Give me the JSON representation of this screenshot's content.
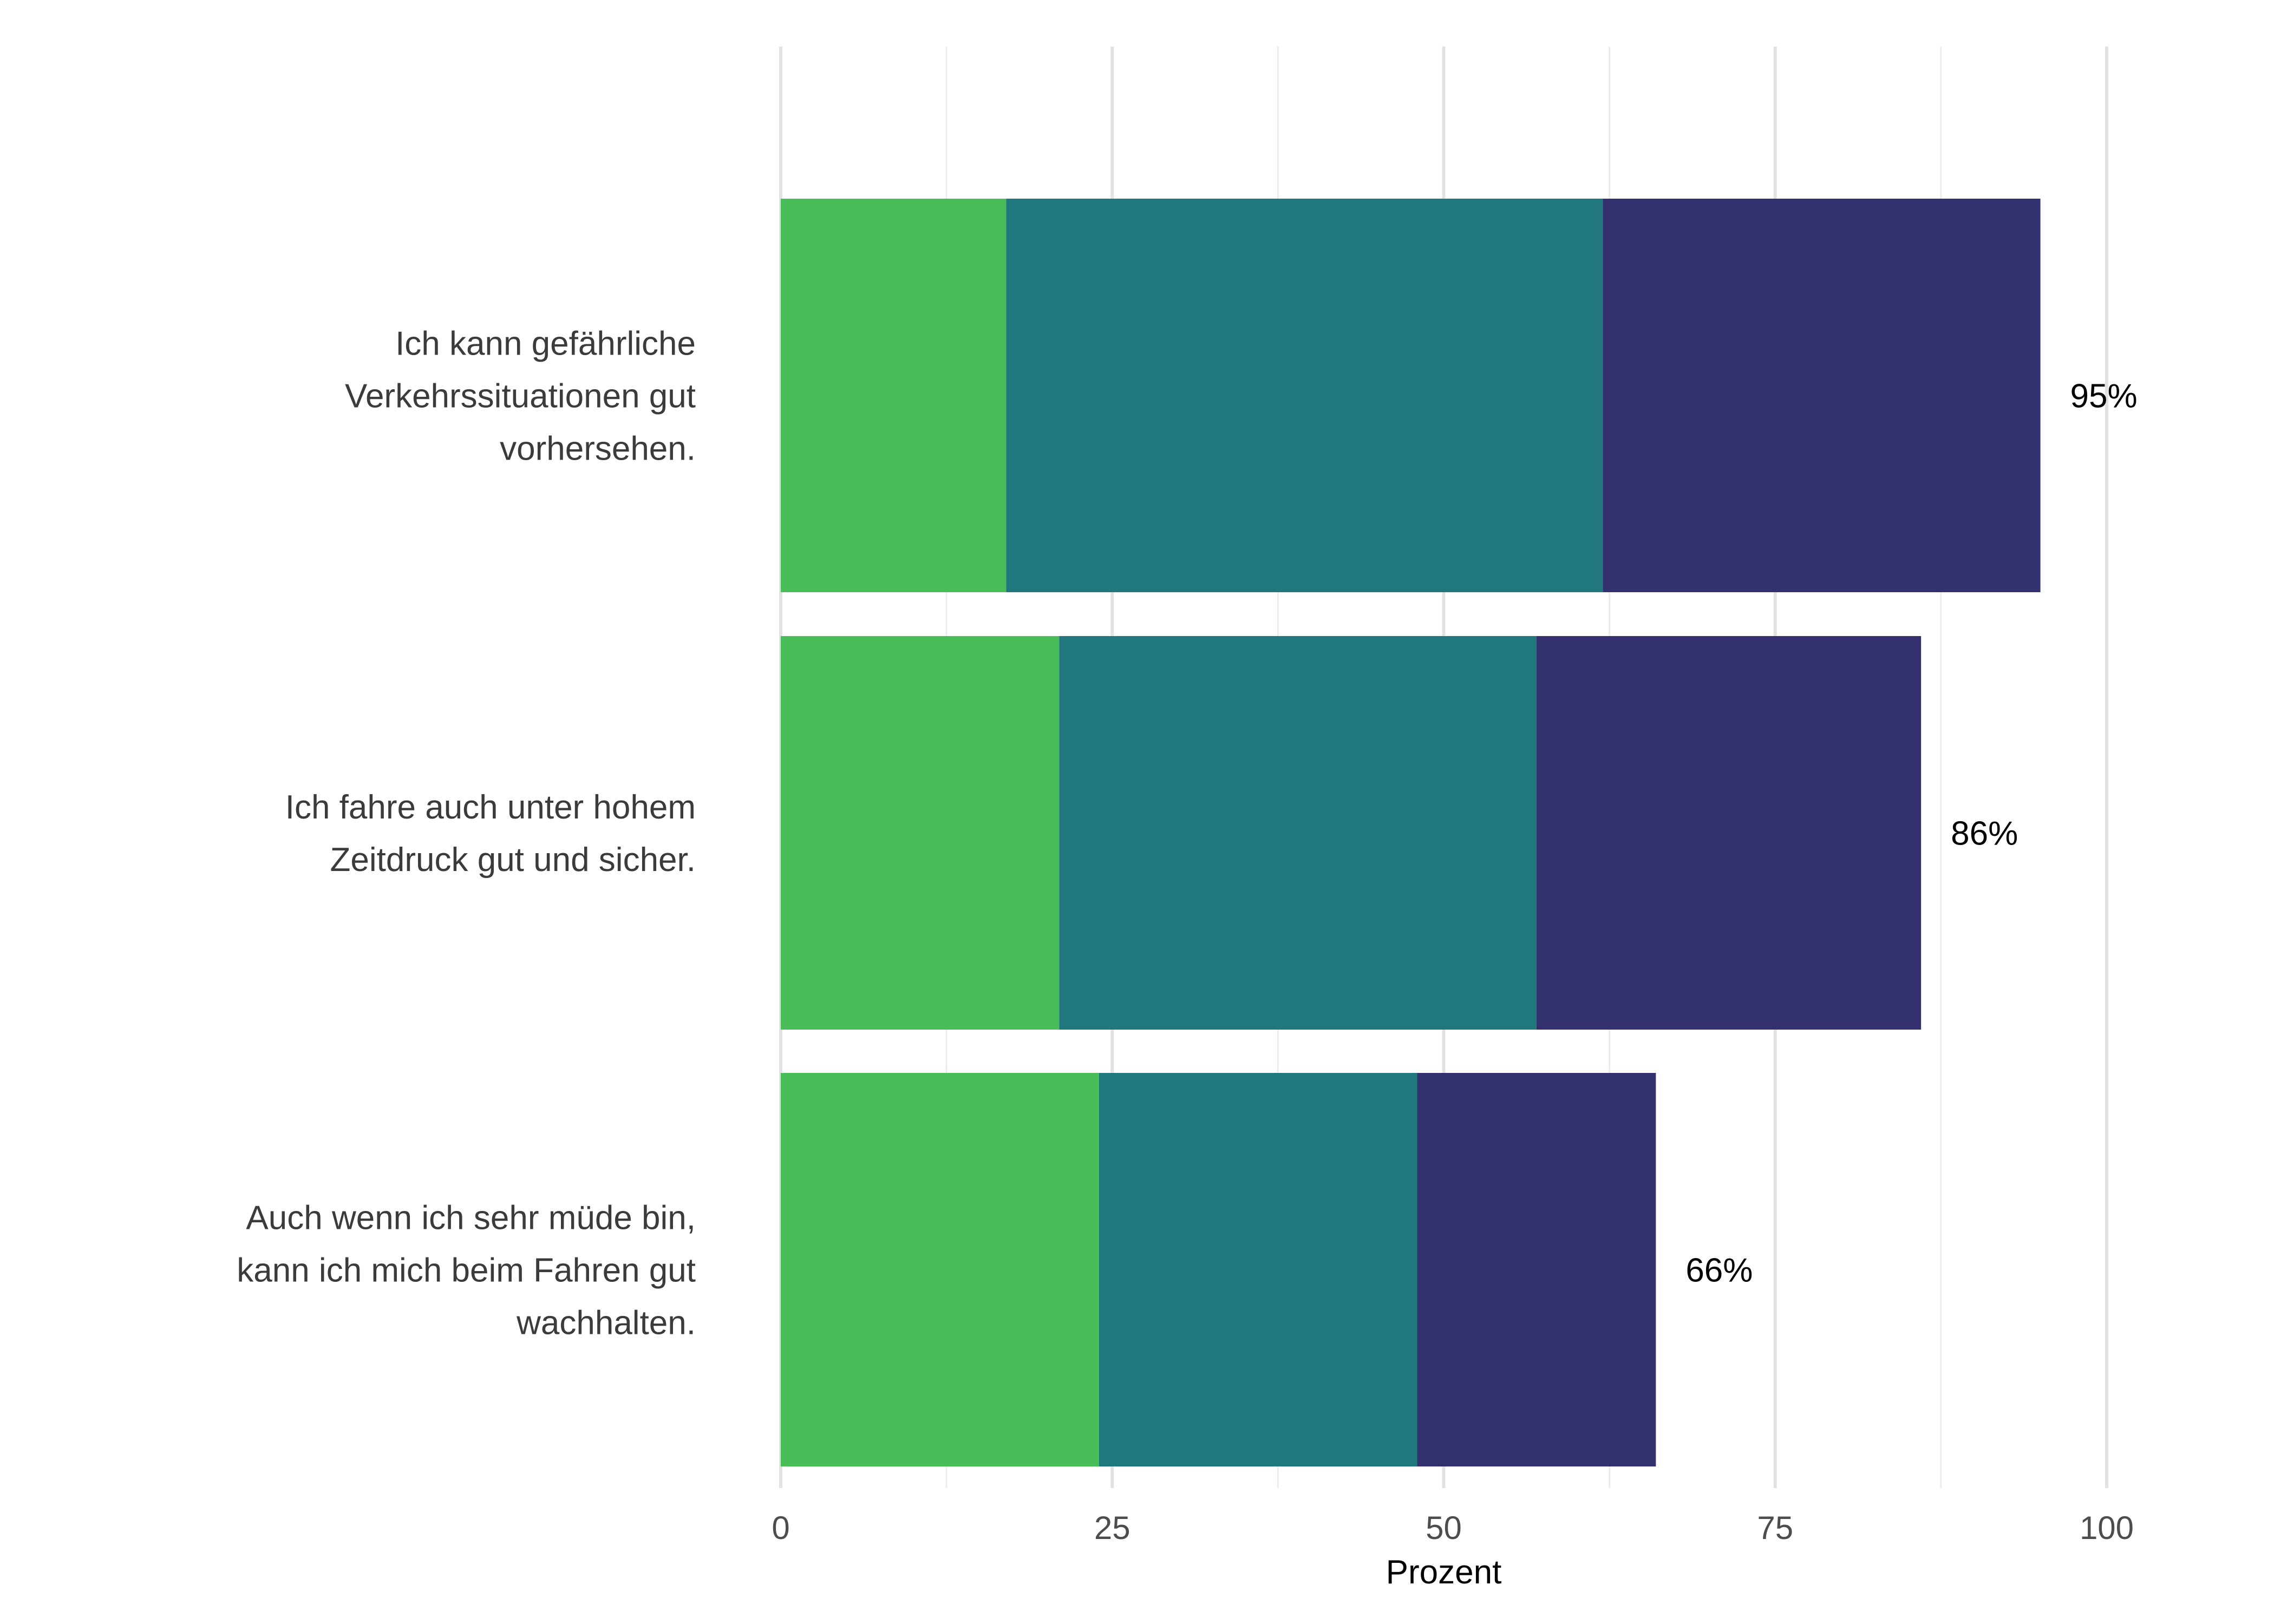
{
  "chart_data": {
    "type": "bar",
    "orientation": "horizontal",
    "stacked": true,
    "title": "",
    "xlabel": "Prozent",
    "ylabel": "",
    "xlim": [
      0,
      100
    ],
    "x_ticks": [
      0,
      25,
      50,
      75,
      100
    ],
    "grid": true,
    "legend": "none",
    "categories": [
      [
        "Ich kann gefährliche",
        "Verkehrssituationen gut",
        "vorhersehen."
      ],
      [
        "Ich fahre auch unter hohem",
        "Zeitdruck gut und sicher."
      ],
      [
        "Auch wenn ich sehr müde bin,",
        "kann ich mich beim Fahren gut",
        "wachhalten."
      ]
    ],
    "series": [
      {
        "name": "segment-1",
        "color": "#48BD58",
        "values": [
          17,
          21,
          24
        ]
      },
      {
        "name": "segment-2",
        "color": "#20787C",
        "values": [
          45,
          36,
          24
        ]
      },
      {
        "name": "segment-3",
        "color": "#333070",
        "values": [
          33,
          29,
          18
        ]
      }
    ],
    "totals": [
      95,
      86,
      66
    ],
    "total_labels": [
      "95%",
      "86%",
      "66%"
    ]
  }
}
